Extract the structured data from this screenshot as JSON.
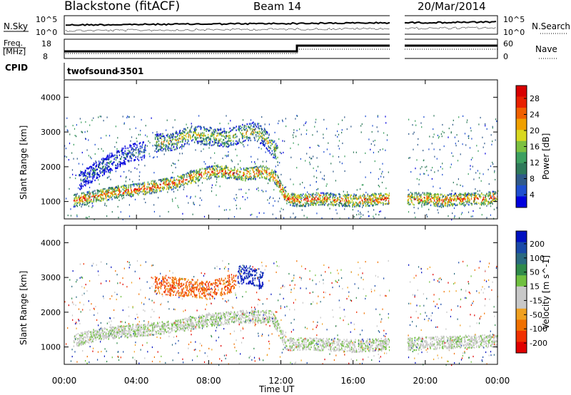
{
  "header": {
    "station": "Blackstone (fitACF)",
    "beam": "Beam 14",
    "date": "20/Mar/2014"
  },
  "top_panels": {
    "nsky_label": "N.Sky",
    "nsearch_label": "N.Search",
    "noise_ticks": [
      "10^5",
      "10^0"
    ],
    "freq_label_1": "Freq.",
    "freq_label_2": "[MHz]",
    "freq_ticks": [
      "18",
      "8"
    ],
    "nave_label": "Nave",
    "nave_ticks": [
      "60",
      "0"
    ],
    "cpid_label": "CPID",
    "cpid_name": "twofsound",
    "cpid_value": "-3501"
  },
  "chart_data": [
    {
      "type": "heatmap",
      "name": "power",
      "ylabel": "Slant Range [km]",
      "ylim": [
        500,
        4500
      ],
      "yticks": [
        "1000",
        "2000",
        "3000",
        "4000"
      ],
      "xlim": [
        0,
        24
      ],
      "colorbar_label": "Power [dB]",
      "colorbar_ticks": [
        "28",
        "24",
        "20",
        "16",
        "12",
        "8",
        "4"
      ],
      "colors": [
        "#0000dd",
        "#1f4fd0",
        "#305a8a",
        "#2f7a5a",
        "#3da060",
        "#7cc040",
        "#d8d820",
        "#f0a000",
        "#f06000",
        "#e82000",
        "#d80000"
      ],
      "features": [
        {
          "t": [
            0.5,
            1.5,
            3,
            4.5,
            6,
            7.5,
            8.5,
            10,
            11,
            11.7,
            12.3,
            13,
            14,
            16,
            18
          ],
          "range": [
            1050,
            1150,
            1300,
            1400,
            1550,
            1800,
            1900,
            1800,
            1900,
            1700,
            1100,
            1050,
            1100,
            1050,
            1100
          ],
          "value": 24
        },
        {
          "t": [
            0.8,
            2,
            3.5,
            4.5
          ],
          "range": [
            1600,
            2000,
            2400,
            2500
          ],
          "value": 10
        },
        {
          "t": [
            5,
            6,
            7,
            8,
            9,
            10,
            10.5,
            11,
            11.8
          ],
          "range": [
            2700,
            2750,
            2950,
            2900,
            2850,
            3000,
            3050,
            2900,
            2400
          ],
          "value": 18
        },
        {
          "t": [
            19,
            20,
            21,
            22,
            23,
            24
          ],
          "range": [
            1100,
            1100,
            1050,
            1100,
            1100,
            1150
          ],
          "value": 24
        }
      ],
      "gap": [
        18.2,
        19.0
      ]
    },
    {
      "type": "heatmap",
      "name": "velocity",
      "xlabel": "Time UT",
      "ylabel": "Slant Range [km]",
      "ylim": [
        500,
        4500
      ],
      "yticks": [
        "1000",
        "2000",
        "3000",
        "4000"
      ],
      "xticks": [
        "00:00",
        "04:00",
        "08:00",
        "12:00",
        "16:00",
        "20:00",
        "00:00"
      ],
      "xlim": [
        0,
        24
      ],
      "colorbar_label": "Velocity [m s^-1]",
      "colorbar_ticks": [
        "200",
        "100",
        "50",
        "15",
        "-15",
        "-50",
        "-100",
        "-200"
      ],
      "colors": [
        "#0010c0",
        "#1a4aa8",
        "#2a6a80",
        "#2f8a4a",
        "#70c040",
        "#c8c8c8",
        "#c8c8c8",
        "#f0a020",
        "#f07000",
        "#f03000",
        "#e00000"
      ],
      "features": [
        {
          "t": [
            0.5,
            2,
            4,
            6,
            8,
            10,
            11.5,
            12.3,
            14,
            16,
            18
          ],
          "range": [
            1200,
            1400,
            1500,
            1600,
            1800,
            1900,
            1900,
            1100,
            1100,
            1050,
            1100
          ],
          "value": 0
        },
        {
          "t": [
            5,
            6.5,
            8,
            9.5
          ],
          "range": [
            2800,
            2750,
            2650,
            2900
          ],
          "value": -120
        },
        {
          "t": [
            9.6,
            10.3,
            11
          ],
          "range": [
            3100,
            3100,
            2900
          ],
          "value": 180
        },
        {
          "t": [
            19,
            21,
            24
          ],
          "range": [
            1100,
            1150,
            1200
          ],
          "value": 0
        }
      ],
      "gap": [
        18.2,
        19.0
      ]
    }
  ]
}
